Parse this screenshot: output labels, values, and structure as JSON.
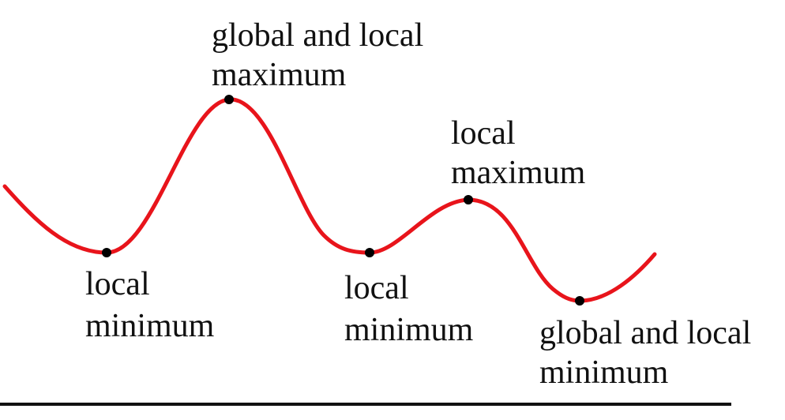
{
  "colors": {
    "curve": "#e8141b",
    "point": "#000000",
    "text": "#111111",
    "baseline": "#111111"
  },
  "points": [
    {
      "id": "lmin1",
      "label_lines": [
        "local",
        "minimum"
      ]
    },
    {
      "id": "gmax",
      "label_lines": [
        "global and local",
        "maximum"
      ]
    },
    {
      "id": "lmin2",
      "label_lines": [
        "local",
        "minimum"
      ]
    },
    {
      "id": "lmax",
      "label_lines": [
        "local",
        "maximum"
      ]
    },
    {
      "id": "gmin",
      "label_lines": [
        "global and local",
        "minimum"
      ]
    }
  ]
}
